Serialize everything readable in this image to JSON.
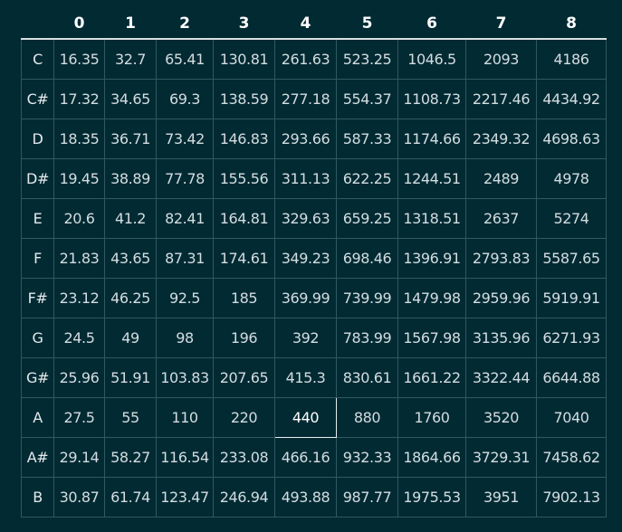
{
  "table": {
    "corner_label": "",
    "octaves": [
      "0",
      "1",
      "2",
      "3",
      "4",
      "5",
      "6",
      "7",
      "8"
    ],
    "highlight": {
      "row": 9,
      "col": 4
    },
    "rows": [
      {
        "note": "C",
        "values": [
          "16.35",
          "32.7",
          "65.41",
          "130.81",
          "261.63",
          "523.25",
          "1046.5",
          "2093",
          "4186"
        ]
      },
      {
        "note": "C#",
        "values": [
          "17.32",
          "34.65",
          "69.3",
          "138.59",
          "277.18",
          "554.37",
          "1108.73",
          "2217.46",
          "4434.92"
        ]
      },
      {
        "note": "D",
        "values": [
          "18.35",
          "36.71",
          "73.42",
          "146.83",
          "293.66",
          "587.33",
          "1174.66",
          "2349.32",
          "4698.63"
        ]
      },
      {
        "note": "D#",
        "values": [
          "19.45",
          "38.89",
          "77.78",
          "155.56",
          "311.13",
          "622.25",
          "1244.51",
          "2489",
          "4978"
        ]
      },
      {
        "note": "E",
        "values": [
          "20.6",
          "41.2",
          "82.41",
          "164.81",
          "329.63",
          "659.25",
          "1318.51",
          "2637",
          "5274"
        ]
      },
      {
        "note": "F",
        "values": [
          "21.83",
          "43.65",
          "87.31",
          "174.61",
          "349.23",
          "698.46",
          "1396.91",
          "2793.83",
          "5587.65"
        ]
      },
      {
        "note": "F#",
        "values": [
          "23.12",
          "46.25",
          "92.5",
          "185",
          "369.99",
          "739.99",
          "1479.98",
          "2959.96",
          "5919.91"
        ]
      },
      {
        "note": "G",
        "values": [
          "24.5",
          "49",
          "98",
          "196",
          "392",
          "783.99",
          "1567.98",
          "3135.96",
          "6271.93"
        ]
      },
      {
        "note": "G#",
        "values": [
          "25.96",
          "51.91",
          "103.83",
          "207.65",
          "415.3",
          "830.61",
          "1661.22",
          "3322.44",
          "6644.88"
        ]
      },
      {
        "note": "A",
        "values": [
          "27.5",
          "55",
          "110",
          "220",
          "440",
          "880",
          "1760",
          "3520",
          "7040"
        ]
      },
      {
        "note": "A#",
        "values": [
          "29.14",
          "58.27",
          "116.54",
          "233.08",
          "466.16",
          "932.33",
          "1864.66",
          "3729.31",
          "7458.62"
        ]
      },
      {
        "note": "B",
        "values": [
          "30.87",
          "61.74",
          "123.47",
          "246.94",
          "493.88",
          "987.77",
          "1975.53",
          "3951",
          "7902.13"
        ]
      }
    ]
  },
  "colors": {
    "background": "#022a33",
    "grid_line": "#2f5860",
    "header_rule": "#d8dfe1",
    "highlight_border": "#e8eef0",
    "text": "#d3dde0"
  }
}
